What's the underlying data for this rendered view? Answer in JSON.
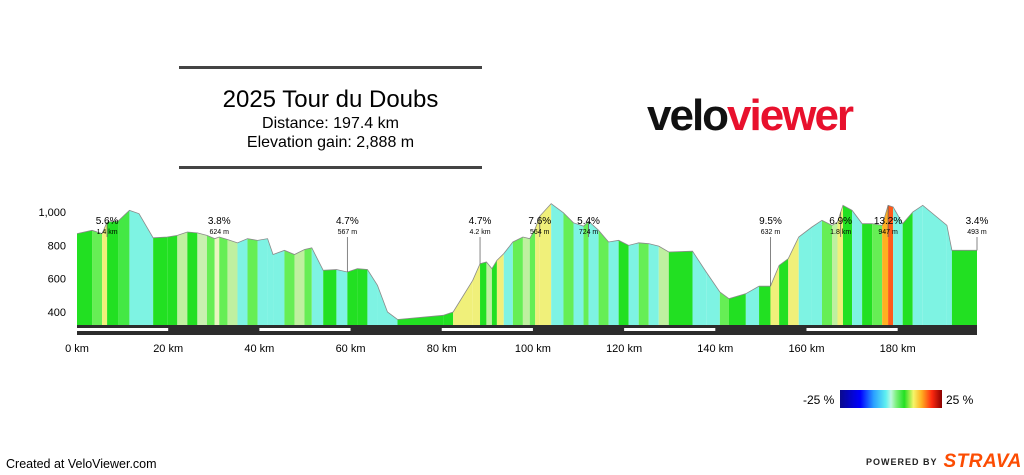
{
  "header": {
    "title": "2025 Tour du Doubs",
    "distance": "Distance: 197.4 km",
    "elevation_gain": "Elevation gain: 2,888 m"
  },
  "logo": {
    "part1": "velo",
    "part2": "viewer",
    "color_primary": "#111111",
    "color_accent": "#e8112d"
  },
  "legend": {
    "min_label": "-25 %",
    "max_label": "25 %",
    "min": -25,
    "max": 25
  },
  "footer": {
    "created": "Created at VeloViewer.com",
    "powered": "POWERED BY",
    "brand": "STRAVA",
    "brand_color": "#fc4c02"
  },
  "chart_data": {
    "type": "area",
    "xlabel": "",
    "ylabel": "",
    "xlim": [
      0,
      197.4
    ],
    "ylim": [
      250,
      1100
    ],
    "x_ticks": [
      {
        "value": 0,
        "label": "0 km"
      },
      {
        "value": 20,
        "label": "20 km"
      },
      {
        "value": 40,
        "label": "40 km"
      },
      {
        "value": 60,
        "label": "60 km"
      },
      {
        "value": 80,
        "label": "80 km"
      },
      {
        "value": 100,
        "label": "100 km"
      },
      {
        "value": 120,
        "label": "120 km"
      },
      {
        "value": 140,
        "label": "140 km"
      },
      {
        "value": 160,
        "label": "160 km"
      },
      {
        "value": 180,
        "label": "180 km"
      }
    ],
    "y_ticks": [
      {
        "value": 400,
        "label": "400"
      },
      {
        "value": 600,
        "label": "600"
      },
      {
        "value": 800,
        "label": "800"
      },
      {
        "value": 1000,
        "label": "1,000"
      }
    ],
    "climbs": [
      {
        "km": 6.6,
        "grade": "5.6%",
        "detail": "1.4 km"
      },
      {
        "km": 31.2,
        "grade": "3.8%",
        "detail": "624 m"
      },
      {
        "km": 59.3,
        "grade": "4.7%",
        "detail": "567 m"
      },
      {
        "km": 88.4,
        "grade": "4.7%",
        "detail": "4.2 km"
      },
      {
        "km": 101.5,
        "grade": "7.6%",
        "detail": "564 m"
      },
      {
        "km": 112.2,
        "grade": "5.4%",
        "detail": "724 m"
      },
      {
        "km": 152.1,
        "grade": "9.5%",
        "detail": "632 m"
      },
      {
        "km": 167.5,
        "grade": "6.9%",
        "detail": "1.8 km"
      },
      {
        "km": 177.9,
        "grade": "13.2%",
        "detail": "947 m"
      },
      {
        "km": 197.4,
        "grade": "3.4%",
        "detail": "493 m"
      }
    ],
    "profile": [
      {
        "km": 0,
        "elev": 870,
        "color": "#22e022"
      },
      {
        "km": 3.3,
        "elev": 890,
        "color": "#66ee55"
      },
      {
        "km": 5.5,
        "elev": 870,
        "color": "#f0f07a"
      },
      {
        "km": 6.6,
        "elev": 940,
        "color": "#22e022"
      },
      {
        "km": 9.0,
        "elev": 945,
        "color": "#44e844"
      },
      {
        "km": 11.5,
        "elev": 1010,
        "color": "#7ef3e3"
      },
      {
        "km": 13.6,
        "elev": 990,
        "color": "#7ef3e3"
      },
      {
        "km": 16.7,
        "elev": 845,
        "color": "#22e022"
      },
      {
        "km": 19.8,
        "elev": 850,
        "color": "#22e022"
      },
      {
        "km": 22.0,
        "elev": 860,
        "color": "#bff0a0"
      },
      {
        "km": 24.2,
        "elev": 880,
        "color": "#22e022"
      },
      {
        "km": 26.4,
        "elev": 875,
        "color": "#c8f0b0"
      },
      {
        "km": 28.5,
        "elev": 860,
        "color": "#66ee55"
      },
      {
        "km": 30.2,
        "elev": 840,
        "color": "#e8f6c0"
      },
      {
        "km": 31.2,
        "elev": 850,
        "color": "#66ee55"
      },
      {
        "km": 33.0,
        "elev": 835,
        "color": "#bff0a0"
      },
      {
        "km": 35.2,
        "elev": 815,
        "color": "#7ef3e3"
      },
      {
        "km": 37.4,
        "elev": 840,
        "color": "#66ee55"
      },
      {
        "km": 39.6,
        "elev": 830,
        "color": "#7ef3e3"
      },
      {
        "km": 41.8,
        "elev": 840,
        "color": "#7ef3e3"
      },
      {
        "km": 43.0,
        "elev": 745,
        "color": "#7ef3e3"
      },
      {
        "km": 45.5,
        "elev": 770,
        "color": "#66ee55"
      },
      {
        "km": 47.7,
        "elev": 745,
        "color": "#bff0a0"
      },
      {
        "km": 49.9,
        "elev": 775,
        "color": "#66ee55"
      },
      {
        "km": 51.5,
        "elev": 785,
        "color": "#7ef3e3"
      },
      {
        "km": 54.0,
        "elev": 650,
        "color": "#22e022"
      },
      {
        "km": 56.9,
        "elev": 655,
        "color": "#7ef3e3"
      },
      {
        "km": 59.3,
        "elev": 640,
        "color": "#22e022"
      },
      {
        "km": 61.5,
        "elev": 660,
        "color": "#22e022"
      },
      {
        "km": 63.7,
        "elev": 655,
        "color": "#7ef3e3"
      },
      {
        "km": 65.9,
        "elev": 560,
        "color": "#7ef3e3"
      },
      {
        "km": 68.1,
        "elev": 400,
        "color": "#7ef3e3"
      },
      {
        "km": 70.3,
        "elev": 355,
        "color": "#22e022"
      },
      {
        "km": 80.3,
        "elev": 380,
        "color": "#22e022"
      },
      {
        "km": 82.5,
        "elev": 400,
        "color": "#f0f07a"
      },
      {
        "km": 86.8,
        "elev": 590,
        "color": "#f0f07a"
      },
      {
        "km": 88.4,
        "elev": 690,
        "color": "#22e022"
      },
      {
        "km": 89.8,
        "elev": 700,
        "color": "#bff0a0"
      },
      {
        "km": 91.0,
        "elev": 660,
        "color": "#22e022"
      },
      {
        "km": 92.1,
        "elev": 710,
        "color": "#f0f07a"
      },
      {
        "km": 93.6,
        "elev": 750,
        "color": "#7ef3e3"
      },
      {
        "km": 95.6,
        "elev": 820,
        "color": "#66ee55"
      },
      {
        "km": 97.8,
        "elev": 850,
        "color": "#bff0a0"
      },
      {
        "km": 99.3,
        "elev": 840,
        "color": "#66ee55"
      },
      {
        "km": 100.5,
        "elev": 900,
        "color": "#f0f07a"
      },
      {
        "km": 101.5,
        "elev": 975,
        "color": "#f0f07a"
      },
      {
        "km": 104.0,
        "elev": 1050,
        "color": "#7ef3e3"
      },
      {
        "km": 106.7,
        "elev": 995,
        "color": "#66ee55"
      },
      {
        "km": 108.9,
        "elev": 935,
        "color": "#7ef3e3"
      },
      {
        "km": 111.1,
        "elev": 915,
        "color": "#66ee55"
      },
      {
        "km": 112.2,
        "elev": 945,
        "color": "#7ef3e3"
      },
      {
        "km": 114.4,
        "elev": 890,
        "color": "#66ee55"
      },
      {
        "km": 116.6,
        "elev": 820,
        "color": "#7ef3e3"
      },
      {
        "km": 118.8,
        "elev": 830,
        "color": "#22e022"
      },
      {
        "km": 121.0,
        "elev": 800,
        "color": "#7ef3e3"
      },
      {
        "km": 123.2,
        "elev": 815,
        "color": "#66ee55"
      },
      {
        "km": 125.4,
        "elev": 810,
        "color": "#7ef3e3"
      },
      {
        "km": 127.6,
        "elev": 795,
        "color": "#bff0a0"
      },
      {
        "km": 129.8,
        "elev": 760,
        "color": "#22e022"
      },
      {
        "km": 135.0,
        "elev": 765,
        "color": "#7ef3e3"
      },
      {
        "km": 138.0,
        "elev": 640,
        "color": "#7ef3e3"
      },
      {
        "km": 141.0,
        "elev": 520,
        "color": "#66ee55"
      },
      {
        "km": 143.0,
        "elev": 480,
        "color": "#22e022"
      },
      {
        "km": 146.7,
        "elev": 510,
        "color": "#7ef3e3"
      },
      {
        "km": 149.6,
        "elev": 555,
        "color": "#22e022"
      },
      {
        "km": 152.1,
        "elev": 555,
        "color": "#f0f07a"
      },
      {
        "km": 154.0,
        "elev": 680,
        "color": "#22e022"
      },
      {
        "km": 156.0,
        "elev": 720,
        "color": "#f0f07a"
      },
      {
        "km": 158.3,
        "elev": 850,
        "color": "#7ef3e3"
      },
      {
        "km": 161.2,
        "elev": 910,
        "color": "#7ef3e3"
      },
      {
        "km": 163.4,
        "elev": 950,
        "color": "#66ee55"
      },
      {
        "km": 165.6,
        "elev": 920,
        "color": "#bff0a0"
      },
      {
        "km": 166.8,
        "elev": 940,
        "color": "#f0f07a"
      },
      {
        "km": 168.0,
        "elev": 1040,
        "color": "#22e022"
      },
      {
        "km": 170.0,
        "elev": 1010,
        "color": "#7ef3e3"
      },
      {
        "km": 172.2,
        "elev": 930,
        "color": "#22e022"
      },
      {
        "km": 174.4,
        "elev": 930,
        "color": "#66ee55"
      },
      {
        "km": 176.6,
        "elev": 920,
        "color": "#ffb020"
      },
      {
        "km": 177.9,
        "elev": 1040,
        "color": "#ff5a1a"
      },
      {
        "km": 179.0,
        "elev": 1030,
        "color": "#7ef3e3"
      },
      {
        "km": 181.1,
        "elev": 930,
        "color": "#22e022"
      },
      {
        "km": 183.3,
        "elev": 1000,
        "color": "#7ef3e3"
      },
      {
        "km": 185.5,
        "elev": 1040,
        "color": "#7ef3e3"
      },
      {
        "km": 190.8,
        "elev": 920,
        "color": "#7ef3e3"
      },
      {
        "km": 191.9,
        "elev": 770,
        "color": "#22e022"
      },
      {
        "km": 197.4,
        "elev": 770,
        "color": "#22e022"
      }
    ]
  }
}
